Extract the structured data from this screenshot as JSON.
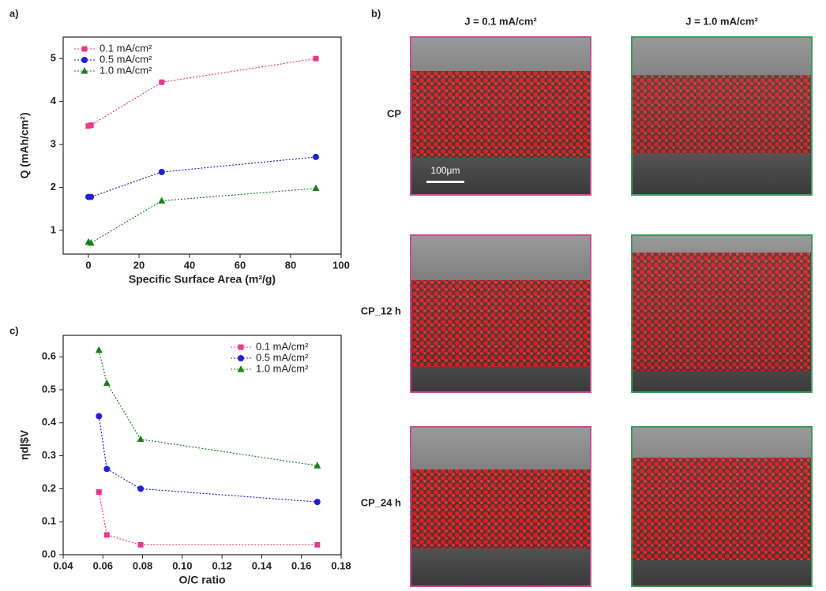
{
  "panel_labels": [
    "a)",
    "b)",
    "c)"
  ],
  "chart_data": [
    {
      "type": "line",
      "xlabel": "Specific Surface Area (m²/g)",
      "ylabel": "Q (mAh/cm²)",
      "x": [
        0,
        1,
        29,
        90
      ],
      "series": [
        {
          "name": "0.1 mA/cm²",
          "color": "#e8388a",
          "marker": "square",
          "values": [
            3.43,
            3.45,
            4.45,
            5.0
          ]
        },
        {
          "name": "0.5 mA/cm²",
          "color": "#1f1fd6",
          "marker": "circle",
          "values": [
            1.78,
            1.78,
            2.36,
            2.71
          ]
        },
        {
          "name": "1.0 mA/cm²",
          "color": "#1d7f1d",
          "marker": "triangle",
          "values": [
            0.73,
            0.71,
            1.69,
            1.98
          ]
        }
      ],
      "xlim": [
        -10,
        100
      ],
      "xticks": [
        0,
        20,
        40,
        60,
        80,
        100
      ],
      "ylim": [
        0.45,
        5.5
      ],
      "yticks": [
        1,
        2,
        3,
        4,
        5
      ],
      "legend": "upper left"
    },
    {
      "type": "line",
      "xlabel": "O/C ratio",
      "ylabel": "ηd|$V",
      "x": [
        0.058,
        0.062,
        0.079,
        0.168
      ],
      "series": [
        {
          "name": "0.1 mA/cm²",
          "color": "#e8388a",
          "marker": "square",
          "values": [
            0.19,
            0.06,
            0.03,
            0.03
          ]
        },
        {
          "name": "0.5 mA/cm²",
          "color": "#1f1fd6",
          "marker": "circle",
          "values": [
            0.42,
            0.26,
            0.2,
            0.16
          ]
        },
        {
          "name": "1.0 mA/cm²",
          "color": "#1d7f1d",
          "marker": "triangle",
          "values": [
            0.62,
            0.52,
            0.35,
            0.27
          ]
        }
      ],
      "xlim": [
        0.04,
        0.18
      ],
      "xticks": [
        0.04,
        0.06,
        0.08,
        {
          "value": 0.1,
          "label": "0.10"
        },
        0.12,
        0.14,
        0.16,
        0.18
      ],
      "ylim": [
        0,
        0.665
      ],
      "yticks": [
        {
          "value": 0,
          "label": "0.0"
        },
        0.1,
        0.2,
        0.3,
        0.4,
        0.5,
        0.6
      ],
      "legend": "upper right"
    }
  ],
  "images": {
    "columns": [
      "J = 0.1 mA/cm²",
      "J = 1.0 mA/cm²"
    ],
    "rows": [
      "CP",
      "CP_12 h",
      "CP_24 h"
    ],
    "scale_bar": "100μm"
  }
}
